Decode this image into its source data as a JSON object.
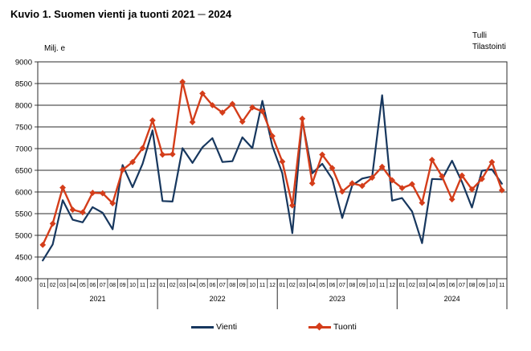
{
  "header": {
    "title": "Kuvio 1. Suomen vienti ja tuonti 2021 ─ 2024"
  },
  "source": {
    "line1": "Tulli",
    "line2": "Tilastointi"
  },
  "chart_data": {
    "type": "line",
    "title": "Kuvio 1. Suomen vienti ja tuonti 2021 ─ 2024",
    "xlabel": "",
    "ylabel": "Milj. e",
    "ylim": [
      4000,
      9000
    ],
    "ytick_step": 500,
    "grid": true,
    "legend_position": "bottom",
    "month_labels": [
      "01",
      "02",
      "03",
      "04",
      "05",
      "06",
      "07",
      "08",
      "09",
      "10",
      "11",
      "12",
      "01",
      "02",
      "03",
      "04",
      "05",
      "06",
      "07",
      "08",
      "09",
      "10",
      "11",
      "12",
      "01",
      "02",
      "03",
      "04",
      "05",
      "06",
      "07",
      "08",
      "09",
      "10",
      "11",
      "12",
      "01",
      "02",
      "03",
      "04",
      "05",
      "06",
      "07",
      "08",
      "09",
      "10",
      "11"
    ],
    "years": [
      {
        "label": "2021",
        "count": 12
      },
      {
        "label": "2022",
        "count": 12
      },
      {
        "label": "2023",
        "count": 12
      },
      {
        "label": "2024",
        "count": 11
      }
    ],
    "series": [
      {
        "name": "Vienti",
        "color": "#17375e",
        "marker": "none",
        "values": [
          4420,
          4790,
          5810,
          5360,
          5300,
          5650,
          5520,
          5140,
          6620,
          6110,
          6650,
          7420,
          5790,
          5780,
          7010,
          6670,
          7030,
          7240,
          6690,
          6710,
          7260,
          7010,
          8100,
          7060,
          6430,
          5050,
          7660,
          6430,
          6650,
          6300,
          5400,
          6150,
          6310,
          6360,
          8230,
          5800,
          5860,
          5550,
          4820,
          6300,
          6290,
          6720,
          6230,
          5640,
          6490,
          6520,
          6190
        ]
      },
      {
        "name": "Tuonti",
        "color": "#d43d1a",
        "marker": "diamond",
        "values": [
          4780,
          5270,
          6100,
          5590,
          5530,
          5980,
          5970,
          5740,
          6510,
          6690,
          7010,
          7650,
          6860,
          6870,
          8540,
          7610,
          8270,
          8000,
          7830,
          8030,
          7620,
          7950,
          7860,
          7290,
          6700,
          5690,
          7690,
          6200,
          6860,
          6550,
          6010,
          6200,
          6140,
          6330,
          6580,
          6270,
          6090,
          6180,
          5750,
          6740,
          6360,
          5830,
          6380,
          6060,
          6300,
          6690,
          6040
        ]
      }
    ]
  },
  "legend": {
    "vienti_label": "Vienti",
    "tuonti_label": "Tuonti"
  }
}
